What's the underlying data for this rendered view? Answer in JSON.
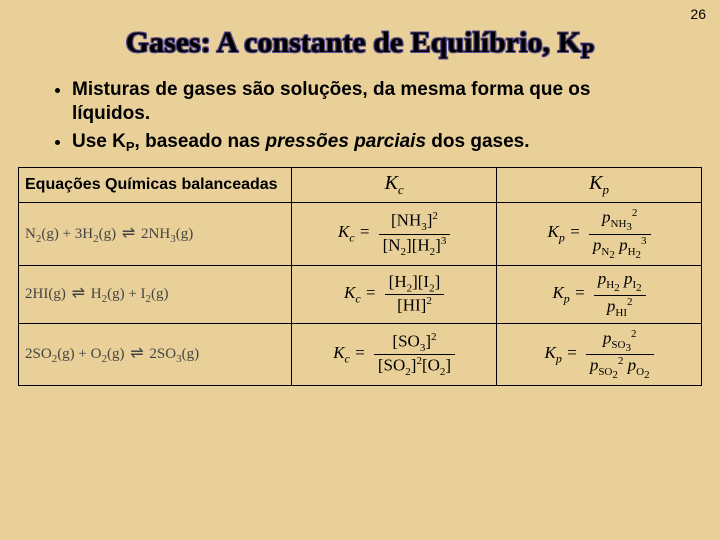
{
  "page_number": "26",
  "title_html": "Gases: A constante de Equilíbrio, K<sub>P</sub>",
  "bullets": [
    "Misturas de gases são soluções, da mesma forma que os líquidos.",
    "Use K<sub>P</sub>, baseado nas <i>pressões parciais</i> dos gases."
  ],
  "header": {
    "reactions": "Equações Químicas balanceadas",
    "kc_html": "K<sub>c</sub>",
    "kp_html": "K<sub>p</sub>"
  },
  "rows": [
    {
      "reaction_html": "N<sub>2</sub>(g) + 3H<sub>2</sub>(g) <span class='arrow'>&#8652;</span> 2NH<sub>3</sub>(g)",
      "kc_num_html": "[NH<sub>3</sub>]<sup>2</sup>",
      "kc_den_html": "[N<sub>2</sub>][H<sub>2</sub>]<sup>3</sup>",
      "kp_num_html": "<span class='p'>p</span><sub>NH<sub>3</sub></sub><sup>2</sup>",
      "kp_den_html": "<span class='p'>p</span><sub>N<sub>2</sub></sub>&nbsp;<span class='p'>p</span><sub>H<sub>2</sub></sub><sup>3</sup>"
    },
    {
      "reaction_html": "2HI(g) <span class='arrow'>&#8652;</span> H<sub>2</sub>(g) + I<sub>2</sub>(g)",
      "kc_num_html": "[H<sub>2</sub>][I<sub>2</sub>]",
      "kc_den_html": "[HI]<sup>2</sup>",
      "kp_num_html": "<span class='p'>p</span><sub>H<sub>2</sub></sub>&nbsp;<span class='p'>p</span><sub>I<sub>2</sub></sub>",
      "kp_den_html": "<span class='p'>p</span><sub>HI</sub><sup>2</sup>"
    },
    {
      "reaction_html": "2SO<sub>2</sub>(g) + O<sub>2</sub>(g) <span class='arrow'>&#8652;</span> 2SO<sub>3</sub>(g)",
      "kc_num_html": "[SO<sub>3</sub>]<sup>2</sup>",
      "kc_den_html": "[SO<sub>2</sub>]<sup>2</sup>[O<sub>2</sub>]",
      "kp_num_html": "<span class='p'>p</span><sub>SO<sub>3</sub></sub><sup>2</sup>",
      "kp_den_html": "<span class='p'>p</span><sub>SO<sub>2</sub></sub><sup>2</sup>&nbsp;<span class='p'>p</span><sub>O<sub>2</sub></sub>"
    }
  ],
  "k_labels": {
    "kc": "K<sub>c</sub> =",
    "kp": "K<sub>p</sub> ="
  }
}
